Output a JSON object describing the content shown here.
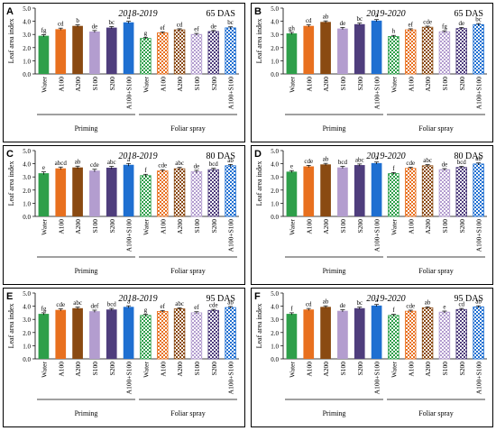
{
  "figure": {
    "type": "bar-panels",
    "layout": "3 rows x 2 columns"
  },
  "colors": {
    "water": "#2e9f4a",
    "a100": "#e8701f",
    "a200": "#8a4a12",
    "s100": "#b39dcf",
    "s200": "#4f3e7d",
    "mix": "#1e6fd1",
    "frame": "#000000",
    "text": "#000000"
  },
  "categories": [
    "Water",
    "A100",
    "A200",
    "S100",
    "S200",
    "A100+S100",
    "Water",
    "A100",
    "A200",
    "S100",
    "S200",
    "A100+S100"
  ],
  "category_keys": [
    "water",
    "a100",
    "a200",
    "s100",
    "s200",
    "mix",
    "water",
    "a100",
    "a200",
    "s100",
    "s200",
    "mix"
  ],
  "treatment_groups": [
    {
      "label": "Priming",
      "pattern": "solid",
      "span": [
        0,
        5
      ]
    },
    {
      "label": "Foliar spray",
      "pattern": "checkered",
      "span": [
        6,
        11
      ]
    }
  ],
  "chart_data": [
    {
      "type": "bar",
      "panel": "A",
      "season": "2018-2019",
      "stage": "65 DAS",
      "ylabel": "Leaf area index",
      "ylim": [
        0,
        5.0
      ],
      "yticks": [
        "0.0",
        "1.0",
        "2.0",
        "3.0",
        "4.0",
        "5.0"
      ],
      "values": [
        2.9,
        3.4,
        3.65,
        3.22,
        3.52,
        3.92,
        2.7,
        3.12,
        3.35,
        3.0,
        3.22,
        3.5
      ],
      "errors": [
        0.08,
        0.08,
        0.08,
        0.08,
        0.08,
        0.08,
        0.08,
        0.08,
        0.08,
        0.08,
        0.08,
        0.08
      ],
      "letters": [
        "fg",
        "cd",
        "b",
        "de",
        "bc",
        "a",
        "g",
        "ef",
        "cd",
        "ef",
        "de",
        "bc"
      ]
    },
    {
      "type": "bar",
      "panel": "B",
      "season": "2019-2020",
      "stage": "65 DAS",
      "ylabel": "Leaf area index",
      "ylim": [
        0,
        5.0
      ],
      "yticks": [
        "0.0",
        "1.0",
        "2.0",
        "3.0",
        "4.0",
        "5.0"
      ],
      "values": [
        3.08,
        3.65,
        3.95,
        3.45,
        3.78,
        4.05,
        2.85,
        3.35,
        3.55,
        3.2,
        3.45,
        3.75
      ],
      "errors": [
        0.08,
        0.08,
        0.08,
        0.08,
        0.08,
        0.08,
        0.08,
        0.08,
        0.08,
        0.08,
        0.08,
        0.08
      ],
      "letters": [
        "gh",
        "cd",
        "ab",
        "de",
        "bc",
        "a",
        "h",
        "ef",
        "cde",
        "fg",
        "de",
        "bc"
      ]
    },
    {
      "type": "bar",
      "panel": "C",
      "season": "2018-2019",
      "stage": "80 DAS",
      "ylabel": "Leaf area index",
      "ylim": [
        0,
        5.0
      ],
      "yticks": [
        "0.0",
        "1.0",
        "2.0",
        "3.0",
        "4.0",
        "5.0"
      ],
      "values": [
        3.28,
        3.65,
        3.72,
        3.48,
        3.7,
        3.92,
        3.1,
        3.45,
        3.62,
        3.4,
        3.55,
        3.85
      ],
      "errors": [
        0.1,
        0.1,
        0.1,
        0.1,
        0.1,
        0.1,
        0.1,
        0.1,
        0.1,
        0.1,
        0.1,
        0.1
      ],
      "letters": [
        "e",
        "abcd",
        "ab",
        "cde",
        "abc",
        "a",
        "f",
        "cde",
        "abc",
        "de",
        "bcd",
        "ab"
      ]
    },
    {
      "type": "bar",
      "panel": "D",
      "season": "2019-2020",
      "stage": "80 DAS",
      "ylabel": "Leaf area index",
      "ylim": [
        0,
        5.0
      ],
      "yticks": [
        "0.0",
        "1.0",
        "2.0",
        "3.0",
        "4.0",
        "5.0"
      ],
      "values": [
        3.4,
        3.8,
        3.95,
        3.72,
        3.9,
        4.05,
        3.25,
        3.65,
        3.85,
        3.55,
        3.72,
        3.98
      ],
      "errors": [
        0.08,
        0.08,
        0.08,
        0.08,
        0.08,
        0.08,
        0.08,
        0.08,
        0.08,
        0.08,
        0.08,
        0.08
      ],
      "letters": [
        "e",
        "cde",
        "ab",
        "bcd",
        "abc",
        "a",
        "f",
        "cde",
        "abc",
        "de",
        "bcd",
        "ab"
      ]
    },
    {
      "type": "bar",
      "panel": "E",
      "season": "2018-2019",
      "stage": "95 DAS",
      "ylabel": "Leaf area index",
      "ylim": [
        0,
        5.0
      ],
      "yticks": [
        "0.0",
        "1.0",
        "2.0",
        "3.0",
        "4.0",
        "5.0"
      ],
      "values": [
        3.42,
        3.72,
        3.85,
        3.62,
        3.75,
        3.95,
        3.3,
        3.6,
        3.8,
        3.5,
        3.68,
        3.9
      ],
      "errors": [
        0.08,
        0.08,
        0.08,
        0.08,
        0.08,
        0.08,
        0.08,
        0.08,
        0.08,
        0.08,
        0.08,
        0.08
      ],
      "letters": [
        "fg",
        "cde",
        "abc",
        "def",
        "bcd",
        "a",
        "g",
        "ef",
        "abc",
        "ef",
        "cde",
        "ab"
      ]
    },
    {
      "type": "bar",
      "panel": "F",
      "season": "2019-2020",
      "stage": "95 DAS",
      "ylabel": "Leaf area index",
      "ylim": [
        0,
        5.0
      ],
      "yticks": [
        "0.0",
        "1.0",
        "2.0",
        "3.0",
        "4.0",
        "5.0"
      ],
      "values": [
        3.42,
        3.75,
        3.95,
        3.65,
        3.85,
        4.05,
        3.3,
        3.62,
        3.88,
        3.55,
        3.75,
        3.95
      ],
      "errors": [
        0.08,
        0.08,
        0.08,
        0.08,
        0.08,
        0.08,
        0.08,
        0.08,
        0.08,
        0.08,
        0.08,
        0.08
      ],
      "letters": [
        "f",
        "cd",
        "ab",
        "de",
        "bc",
        "a",
        "f",
        "cde",
        "ab",
        "e",
        "cd",
        "ab"
      ]
    }
  ]
}
